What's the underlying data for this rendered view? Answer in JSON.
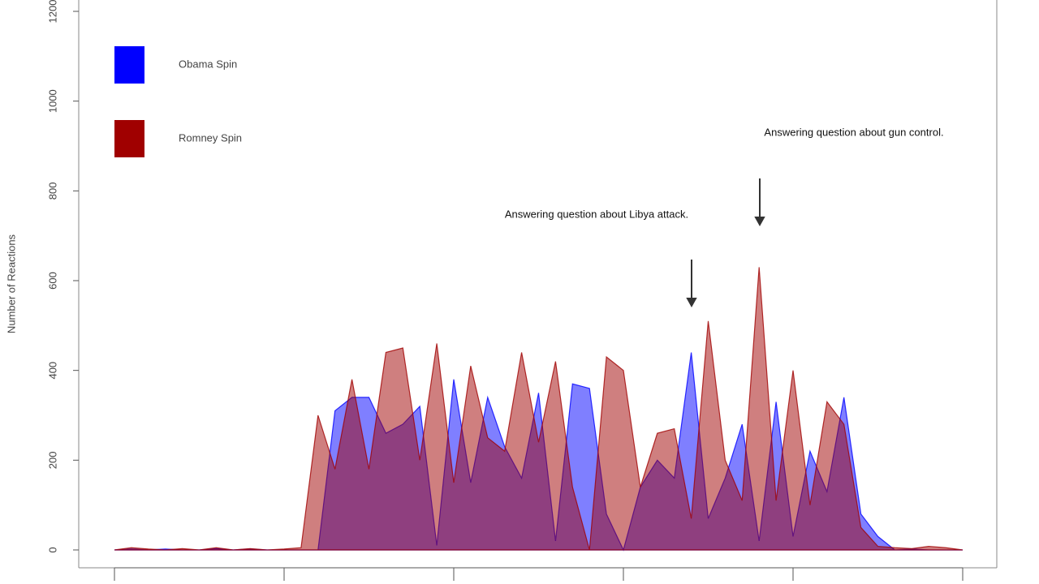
{
  "chart_data": {
    "type": "area",
    "y_label": "Number of Reactions",
    "annotations": [
      "Answering question about Libya attack.",
      "Answering question about gun control."
    ],
    "legend": "top-left",
    "x": [
      0,
      1,
      2,
      3,
      4,
      5,
      6,
      7,
      8,
      9,
      10,
      11,
      12,
      13,
      14,
      15,
      16,
      17,
      18,
      19,
      20,
      21,
      22,
      23,
      24,
      25,
      26,
      27,
      28,
      29,
      30,
      31,
      32,
      33,
      34,
      35,
      36,
      37,
      38,
      39,
      40,
      41,
      42,
      43,
      44,
      45,
      46,
      47,
      48,
      49,
      50
    ],
    "series": [
      {
        "name": "Obama Spin",
        "color": "#0000ff",
        "values": [
          0,
          2,
          0,
          2,
          0,
          0,
          3,
          0,
          2,
          0,
          0,
          0,
          0,
          310,
          340,
          340,
          260,
          280,
          320,
          10,
          380,
          150,
          340,
          230,
          160,
          350,
          20,
          370,
          360,
          80,
          0,
          140,
          200,
          160,
          440,
          70,
          160,
          280,
          20,
          330,
          30,
          220,
          130,
          340,
          80,
          30,
          0,
          2,
          0,
          0,
          0
        ]
      },
      {
        "name": "Romney Spin",
        "color": "#a00000",
        "values": [
          0,
          5,
          2,
          0,
          3,
          0,
          5,
          0,
          3,
          0,
          2,
          5,
          300,
          180,
          380,
          180,
          440,
          450,
          200,
          460,
          150,
          410,
          250,
          220,
          440,
          240,
          420,
          140,
          0,
          430,
          400,
          140,
          260,
          270,
          70,
          510,
          200,
          110,
          630,
          110,
          400,
          100,
          330,
          280,
          50,
          8,
          5,
          3,
          8,
          5,
          0
        ]
      }
    ],
    "xlim": [
      0,
      50
    ],
    "xticks": [
      0,
      10,
      20,
      30,
      40,
      50
    ],
    "ylim": [
      0,
      1200
    ],
    "yticks": [
      0,
      200,
      400,
      600,
      800,
      1000,
      1200
    ]
  }
}
